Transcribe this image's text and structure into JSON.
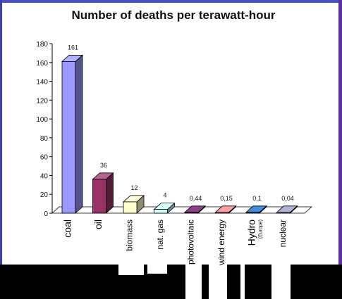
{
  "chart_data": {
    "type": "bar",
    "title": "Number of deaths per terawatt-hour",
    "categories": [
      "coal",
      "oil",
      "biomass",
      "nat. gas",
      "photovoltaic",
      "wind energy",
      "Hydro",
      "nuclear"
    ],
    "category_notes": {
      "Hydro": "(Europe)"
    },
    "values": [
      161,
      36,
      12,
      4,
      0.44,
      0.15,
      0.1,
      0.04
    ],
    "value_labels": [
      "161",
      "36",
      "12",
      "4",
      "0,44",
      "0,15",
      "0,1",
      "0,04"
    ],
    "colors": [
      "#9999ff",
      "#993366",
      "#ffffcc",
      "#ccffff",
      "#660066",
      "#ff8080",
      "#0066cc",
      "#9999cc"
    ],
    "y_ticks": [
      0,
      20,
      40,
      60,
      80,
      100,
      120,
      140,
      160,
      180
    ],
    "ylim": [
      0,
      180
    ],
    "xlabel": "",
    "ylabel": "",
    "grid": false,
    "legend": "none",
    "style": "3d-bar"
  }
}
